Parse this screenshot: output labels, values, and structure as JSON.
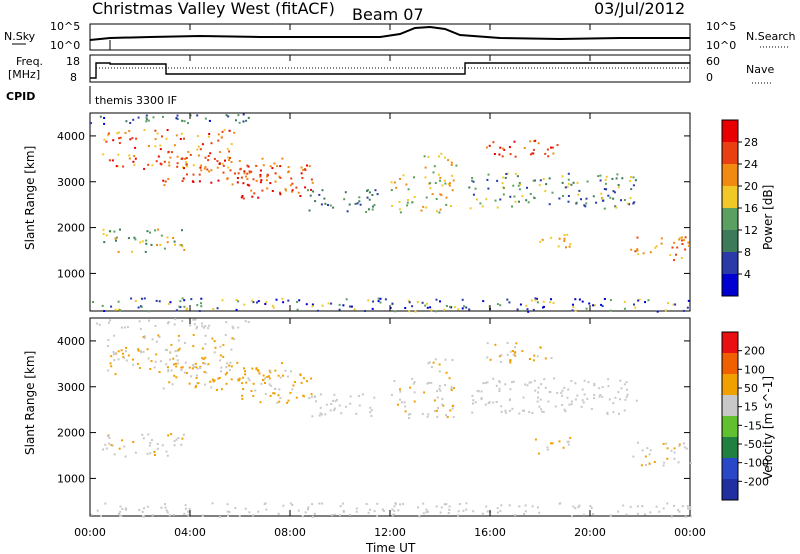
{
  "header": {
    "station": "Christmas Valley West (fitACF)",
    "beam": "Beam 07",
    "date": "03/Jul/2012"
  },
  "panels": {
    "nsky_label": "N.Sky",
    "nsky_ticks": [
      "10^5",
      "10^0"
    ],
    "nsearch_label": "N.Search",
    "nsearch_ticks": [
      "10^5",
      "10^0"
    ],
    "freq_label_1": "Freq.",
    "freq_label_2": "[MHz]",
    "freq_ticks": [
      "18",
      "8"
    ],
    "nave_label": "Nave",
    "nave_ticks": [
      "60",
      "0"
    ],
    "cpid_label": "CPID",
    "cpid_value": "themis 3300 IF"
  },
  "chart_data": [
    {
      "type": "heatmap",
      "name": "power",
      "ylabel": "Slant Range [km]",
      "yticks": [
        "4000",
        "3000",
        "2000",
        "1000"
      ],
      "ylim": [
        180,
        4500
      ],
      "colorbar_label": "Power [dB]",
      "colorbar_ticks": [
        "28",
        "24",
        "20",
        "16",
        "12",
        "8",
        "4"
      ],
      "colors": [
        "#0000d0",
        "#2a3aa8",
        "#3d7a5a",
        "#5aa060",
        "#f0c828",
        "#f08a10",
        "#e84010",
        "#e80000"
      ]
    },
    {
      "type": "heatmap",
      "name": "velocity",
      "ylabel": "Slant Range [km]",
      "yticks": [
        "4000",
        "3000",
        "2000",
        "1000"
      ],
      "ylim": [
        180,
        4500
      ],
      "colorbar_label": "Velocity [m s^-1]",
      "colorbar_ticks": [
        "200",
        "100",
        "50",
        "15",
        "-15",
        "-50",
        "-100",
        "-200"
      ],
      "colors": [
        "#2030a0",
        "#2848c8",
        "#208040",
        "#60c030",
        "#c8c8c8",
        "#f0a000",
        "#f06000",
        "#e81010"
      ]
    }
  ],
  "xaxis": {
    "ticks": [
      "00:00",
      "04:00",
      "08:00",
      "12:00",
      "16:00",
      "20:00",
      "00:00"
    ],
    "label": "Time UT"
  }
}
